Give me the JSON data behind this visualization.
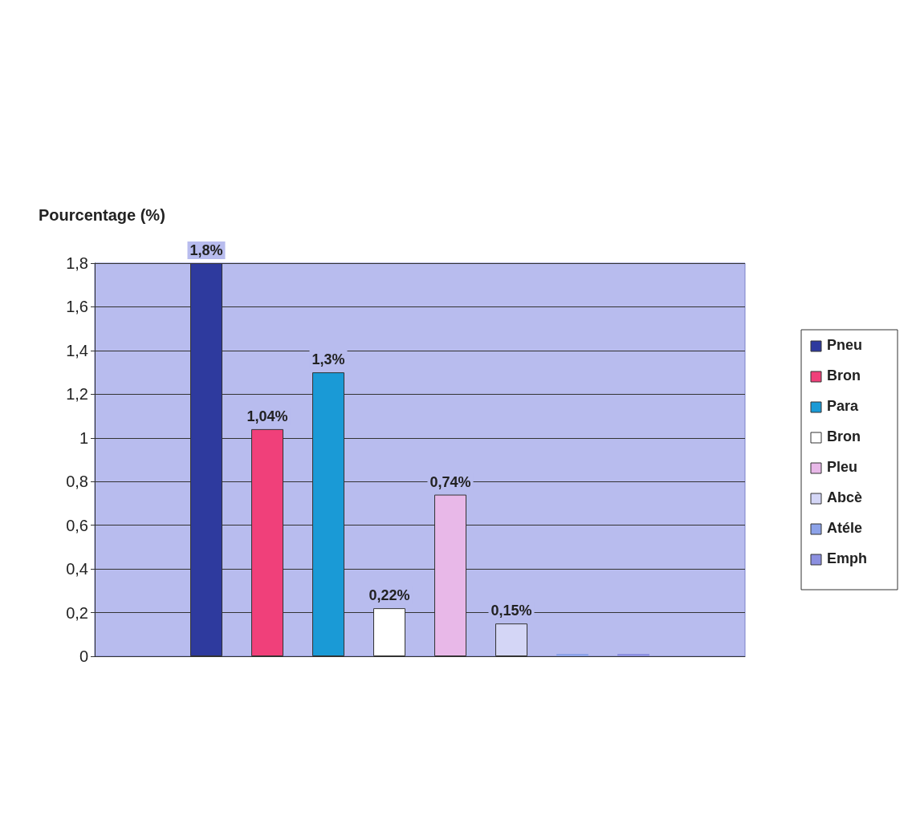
{
  "chart_data": {
    "type": "bar",
    "ylabel": "Pourcentage (%)",
    "categories": [
      null
    ],
    "series": [
      {
        "name": "Pneu",
        "color": "#2e3a9e",
        "values": [
          1.8
        ],
        "value_labels": [
          "1,8%"
        ]
      },
      {
        "name": "Bron",
        "color": "#f0407a",
        "values": [
          1.04
        ],
        "value_labels": [
          "1,04%"
        ]
      },
      {
        "name": "Para",
        "color": "#1a9ad6",
        "values": [
          1.3
        ],
        "value_labels": [
          "1,3%"
        ]
      },
      {
        "name": "Bron",
        "color": "#ffffff",
        "values": [
          0.22
        ],
        "value_labels": [
          "0,22%"
        ]
      },
      {
        "name": "Pleu",
        "color": "#e8b8e8",
        "values": [
          0.74
        ],
        "value_labels": [
          "0,74%"
        ]
      },
      {
        "name": "Abcè",
        "color": "#d4d6f6",
        "values": [
          0.15
        ],
        "value_labels": [
          "0,15%"
        ]
      },
      {
        "name": "Atéle",
        "color": "#8ca2e8",
        "values": [
          0
        ],
        "value_labels": [
          null
        ]
      },
      {
        "name": "Emph",
        "color": "#8c90e0",
        "values": [
          0
        ],
        "value_labels": [
          null
        ]
      }
    ],
    "ylim": [
      0,
      1.8
    ],
    "yticks": [
      0,
      {
        "value": 0.2,
        "label": "0,2"
      },
      {
        "value": 0.4,
        "label": "0,4"
      },
      {
        "value": 0.6,
        "label": "0,6"
      },
      {
        "value": 0.8,
        "label": "0,8"
      },
      1,
      {
        "value": 1.2,
        "label": "1,2"
      },
      {
        "value": 1.4,
        "label": "1,4"
      },
      {
        "value": 1.6,
        "label": "1,6"
      },
      {
        "value": 1.8,
        "label": "1,8"
      }
    ],
    "grid": "y",
    "legend": "right"
  }
}
